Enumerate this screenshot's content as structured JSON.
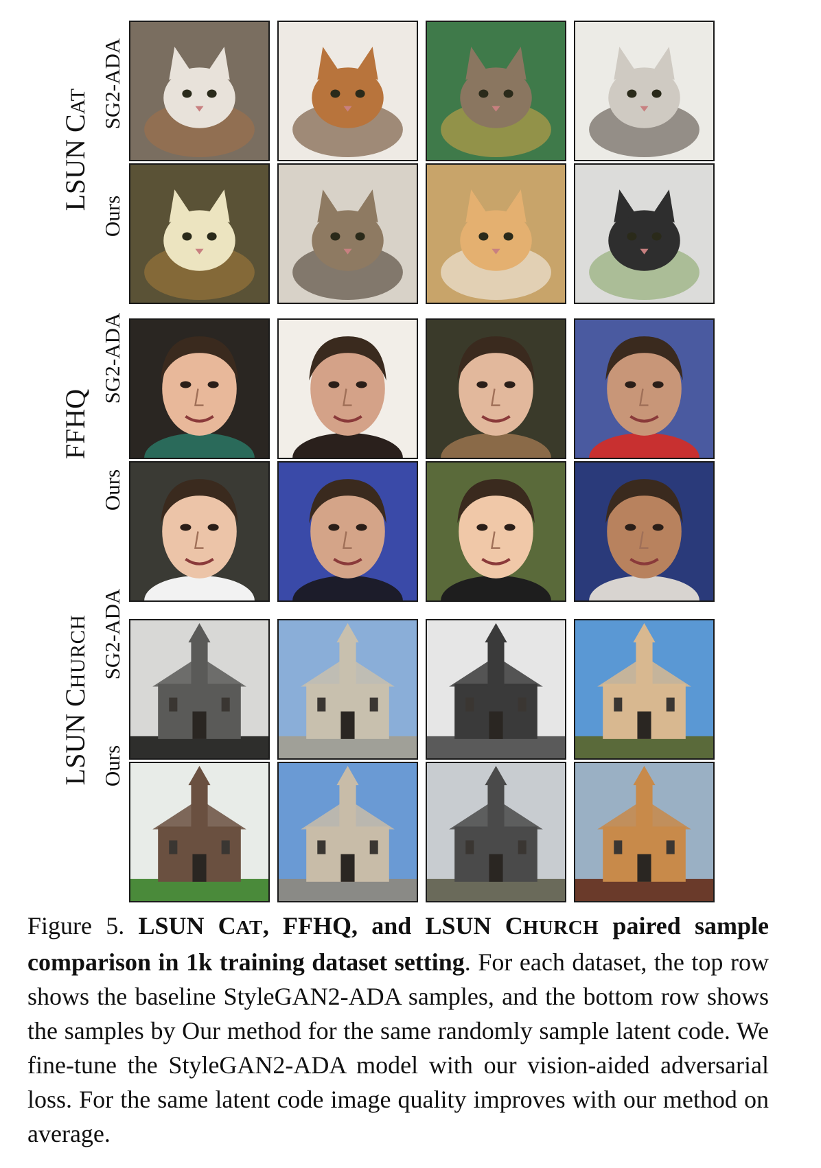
{
  "groups": [
    {
      "label_main": "LSUN C",
      "label_sc": "AT",
      "rows": [
        {
          "label": "SG2-ADA",
          "tiles": [
            {
              "subject": "cat",
              "bg": "#7a6e60",
              "fg": "#e8e2da",
              "accent": "#a0704a"
            },
            {
              "subject": "cat",
              "bg": "#eeeae4",
              "fg": "#b8743c",
              "accent": "#6a4a2e"
            },
            {
              "subject": "cat",
              "bg": "#3f7a4a",
              "fg": "#8a7660",
              "accent": "#c9a24a"
            },
            {
              "subject": "cat",
              "bg": "#ecebe6",
              "fg": "#cfcac2",
              "accent": "#5a5048"
            }
          ]
        },
        {
          "label": "Ours",
          "tiles": [
            {
              "subject": "cat",
              "bg": "#5a5236",
              "fg": "#ece4c0",
              "accent": "#a07a3a"
            },
            {
              "subject": "cat",
              "bg": "#d8d2c8",
              "fg": "#8e7a62",
              "accent": "#4a3c2e"
            },
            {
              "subject": "cat",
              "bg": "#c8a46a",
              "fg": "#e4b070",
              "accent": "#f4eee6"
            },
            {
              "subject": "cat",
              "bg": "#dcdcda",
              "fg": "#2e2e2e",
              "accent": "#8aa86a"
            }
          ]
        }
      ]
    },
    {
      "label_main": "FFHQ",
      "label_sc": "",
      "rows": [
        {
          "label": "SG2-ADA",
          "tiles": [
            {
              "subject": "face",
              "bg": "#2a2622",
              "fg": "#e8b89a",
              "accent": "#2a6a5a"
            },
            {
              "subject": "face",
              "bg": "#f2eee8",
              "fg": "#d4a288",
              "accent": "#2a201c"
            },
            {
              "subject": "face",
              "bg": "#3a3a2a",
              "fg": "#e2b89c",
              "accent": "#8a6a48"
            },
            {
              "subject": "face",
              "bg": "#4a5aa0",
              "fg": "#c89678",
              "accent": "#c83030"
            }
          ]
        },
        {
          "label": "Ours",
          "tiles": [
            {
              "subject": "face",
              "bg": "#3a3a34",
              "fg": "#ecc4a8",
              "accent": "#f2f2f2"
            },
            {
              "subject": "face",
              "bg": "#3a4aa8",
              "fg": "#d4a488",
              "accent": "#1c1c2a"
            },
            {
              "subject": "face",
              "bg": "#5a6a3a",
              "fg": "#f0c8a8",
              "accent": "#1e1e1e"
            },
            {
              "subject": "face",
              "bg": "#2a3a7a",
              "fg": "#b8825e",
              "accent": "#d8d4d0"
            }
          ]
        }
      ]
    },
    {
      "label_main": "LSUN C",
      "label_sc": "HURCH",
      "rows": [
        {
          "label": "SG2-ADA",
          "tiles": [
            {
              "subject": "church",
              "bg": "#d8d8d6",
              "fg": "#5a5a58",
              "accent": "#2e2e2c"
            },
            {
              "subject": "church",
              "bg": "#8aaed8",
              "fg": "#c8c0ae",
              "accent": "#a0a098"
            },
            {
              "subject": "church",
              "bg": "#e6e6e6",
              "fg": "#3a3a3a",
              "accent": "#5a5a5a"
            },
            {
              "subject": "church",
              "bg": "#5a98d4",
              "fg": "#d8b890",
              "accent": "#5a6a3a"
            }
          ]
        },
        {
          "label": "Ours",
          "tiles": [
            {
              "subject": "church",
              "bg": "#e8ece8",
              "fg": "#6a5040",
              "accent": "#4a8a3a"
            },
            {
              "subject": "church",
              "bg": "#6a9ad4",
              "fg": "#c8bca8",
              "accent": "#8a8a86"
            },
            {
              "subject": "church",
              "bg": "#c8ccd0",
              "fg": "#4a4a4a",
              "accent": "#6a6a5a"
            },
            {
              "subject": "church",
              "bg": "#9ab0c4",
              "fg": "#c88a4a",
              "accent": "#6a3a2a"
            }
          ]
        }
      ]
    }
  ],
  "caption": {
    "figure_label": "Figure 5.",
    "bold_title_1": "LSUN C",
    "bold_title_1_sc": "AT",
    "bold_title_2": ", FFHQ, and LSUN C",
    "bold_title_2_sc": "HURCH",
    "bold_title_3": " paired sample comparison in 1k training dataset setting",
    "body": ". For each dataset, the top row shows the baseline StyleGAN2-ADA sam­ples, and the bottom row shows the samples by Our method for the same randomly sample latent code. We fine-tune the StyleGAN2-ADA model with our vision-aided adversarial loss. For the same latent code image quality improves with our method on average."
  }
}
